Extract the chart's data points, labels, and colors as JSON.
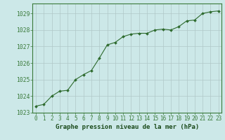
{
  "x": [
    0,
    1,
    2,
    3,
    4,
    5,
    6,
    7,
    8,
    9,
    10,
    11,
    12,
    13,
    14,
    15,
    16,
    17,
    18,
    19,
    20,
    21,
    22,
    23
  ],
  "y": [
    1023.4,
    1023.5,
    1024.0,
    1024.3,
    1024.35,
    1025.0,
    1025.3,
    1025.55,
    1026.3,
    1027.1,
    1027.25,
    1027.6,
    1027.75,
    1027.8,
    1027.8,
    1028.0,
    1028.05,
    1028.0,
    1028.2,
    1028.55,
    1028.6,
    1029.0,
    1029.1,
    1029.15
  ],
  "xlim": [
    -0.4,
    23.4
  ],
  "ylim": [
    1023.0,
    1029.6
  ],
  "yticks": [
    1023,
    1024,
    1025,
    1026,
    1027,
    1028,
    1029
  ],
  "xticks": [
    0,
    1,
    2,
    3,
    4,
    5,
    6,
    7,
    8,
    9,
    10,
    11,
    12,
    13,
    14,
    15,
    16,
    17,
    18,
    19,
    20,
    21,
    22,
    23
  ],
  "line_color": "#2d6a2d",
  "marker_color": "#2d6a2d",
  "bg_color": "#cce8e8",
  "grid_color": "#b0c8c8",
  "border_color": "#3a7a3a",
  "xlabel": "Graphe pression niveau de la mer (hPa)",
  "xlabel_color": "#1a4a1a",
  "xlabel_fontsize": 6.5,
  "tick_fontsize": 5.5,
  "ytick_fontsize": 5.8,
  "figure_bg": "#cce8e8"
}
